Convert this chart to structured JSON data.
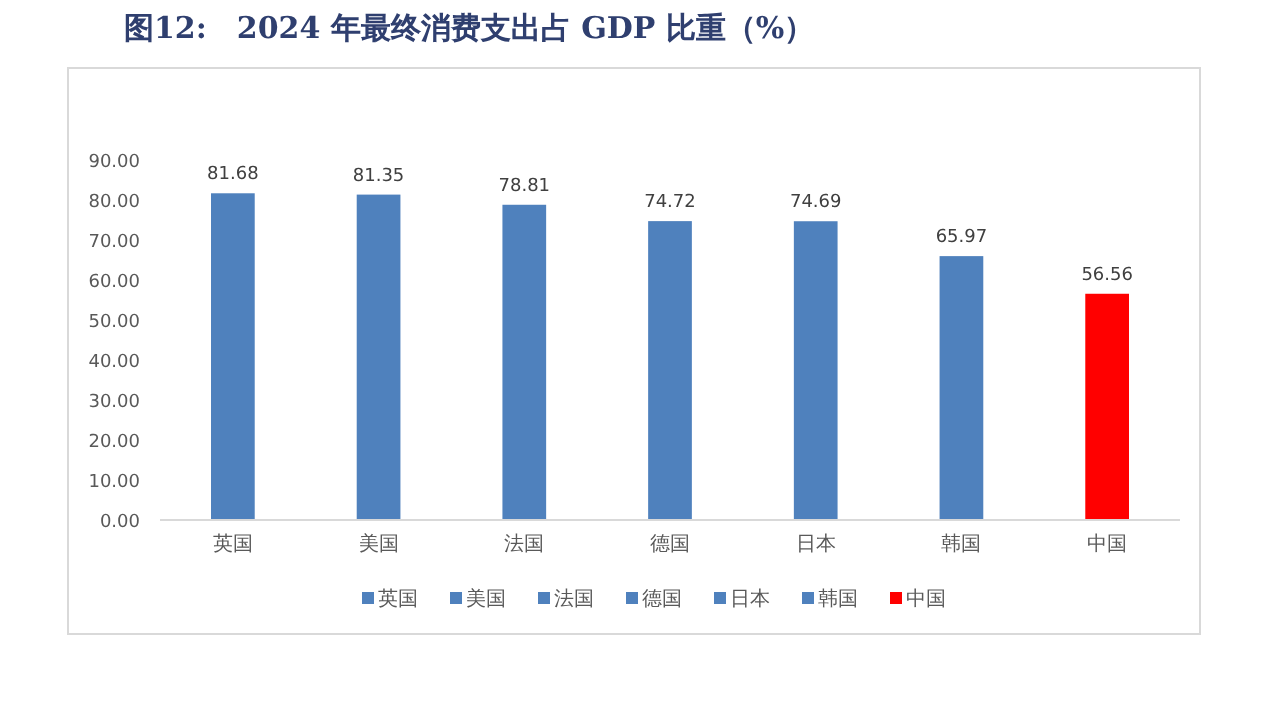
{
  "chart_data": {
    "type": "bar",
    "title": "图12:　2024 年最终消费支出占 GDP 比重（%）",
    "categories": [
      "英国",
      "美国",
      "法国",
      "德国",
      "日本",
      "韩国",
      "中国"
    ],
    "series": [
      {
        "name": "英国",
        "color": "#4f81bd",
        "values": [
          81.68,
          null,
          null,
          null,
          null,
          null,
          null
        ]
      },
      {
        "name": "美国",
        "color": "#4f81bd",
        "values": [
          null,
          81.35,
          null,
          null,
          null,
          null,
          null
        ]
      },
      {
        "name": "法国",
        "color": "#4f81bd",
        "values": [
          null,
          null,
          78.81,
          null,
          null,
          null,
          null
        ]
      },
      {
        "name": "德国",
        "color": "#4f81bd",
        "values": [
          null,
          null,
          null,
          74.72,
          null,
          null,
          null
        ]
      },
      {
        "name": "日本",
        "color": "#4f81bd",
        "values": [
          null,
          null,
          null,
          null,
          74.69,
          null,
          null
        ]
      },
      {
        "name": "韩国",
        "color": "#4f81bd",
        "values": [
          null,
          null,
          null,
          null,
          null,
          65.97,
          null
        ]
      },
      {
        "name": "中国",
        "color": "#ff0000",
        "values": [
          null,
          null,
          null,
          null,
          null,
          null,
          56.56
        ]
      }
    ],
    "ylim": [
      0,
      90
    ],
    "yticks": [
      {
        "value": 0,
        "label": "0.00"
      },
      {
        "value": 10,
        "label": "10.00"
      },
      {
        "value": 20,
        "label": "20.00"
      },
      {
        "value": 30,
        "label": "30.00"
      },
      {
        "value": 40,
        "label": "40.00"
      },
      {
        "value": 50,
        "label": "50.00"
      },
      {
        "value": 60,
        "label": "60.00"
      },
      {
        "value": 70,
        "label": "70.00"
      },
      {
        "value": 80,
        "label": "80.00"
      },
      {
        "value": 90,
        "label": "90.00"
      }
    ],
    "data_labels": true,
    "legend": "bottom"
  }
}
